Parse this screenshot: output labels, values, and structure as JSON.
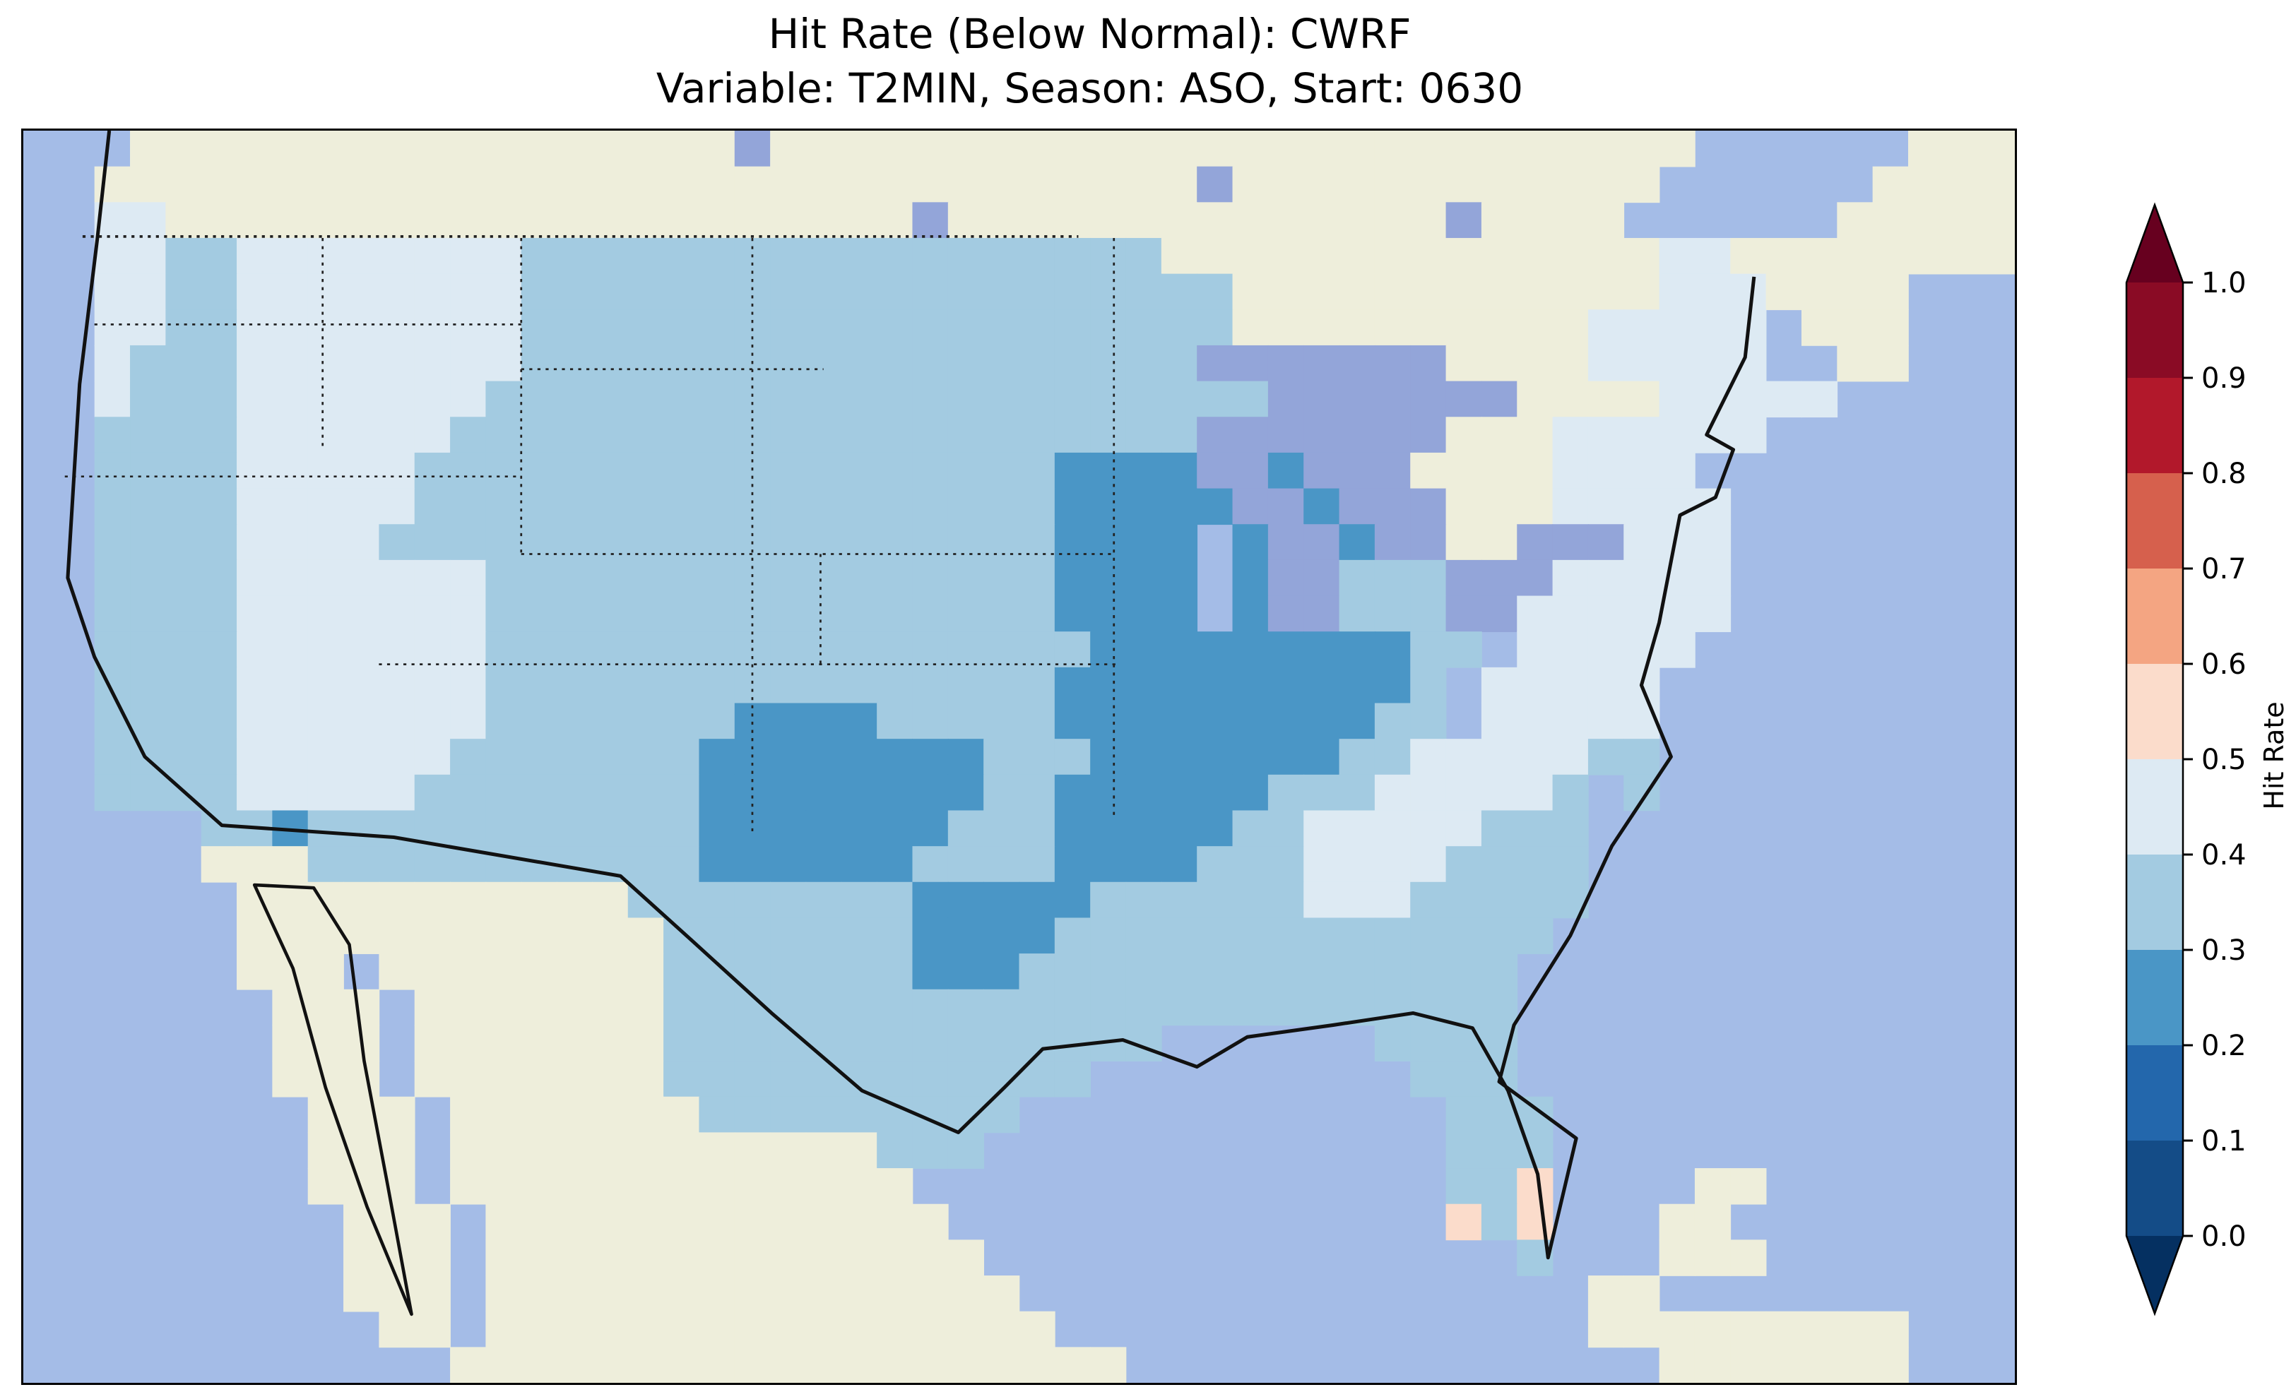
{
  "figure": {
    "title_line1": "Hit Rate (Below Normal): CWRF",
    "title_line2": "Variable: T2MIN, Season: ASO, Start: 0630"
  },
  "colorbar": {
    "label": "Hit Rate",
    "ticks": [
      "1.0",
      "0.9",
      "0.8",
      "0.7",
      "0.6",
      "0.5",
      "0.4",
      "0.3",
      "0.2",
      "0.1",
      "0.0"
    ],
    "over_color": "#67001f",
    "under_color": "#053061",
    "segments": [
      {
        "range": "0.9-1.0",
        "color": "#8a0b25"
      },
      {
        "range": "0.8-0.9",
        "color": "#b2182b"
      },
      {
        "range": "0.7-0.8",
        "color": "#d6604d"
      },
      {
        "range": "0.6-0.7",
        "color": "#f4a582"
      },
      {
        "range": "0.5-0.6",
        "color": "#fbdccb"
      },
      {
        "range": "0.4-0.5",
        "color": "#ddeaf3"
      },
      {
        "range": "0.3-0.4",
        "color": "#a3cbe1"
      },
      {
        "range": "0.2-0.3",
        "color": "#4a96c6"
      },
      {
        "range": "0.1-0.2",
        "color": "#2367ac"
      },
      {
        "range": "0.0-0.1",
        "color": "#144c87"
      }
    ]
  },
  "map": {
    "ocean_color": "#a4bce7",
    "land_color": "#eeeedb",
    "lake_color": "#93a5d9",
    "coast_color": "#111111",
    "border_color": "#222222"
  },
  "chart_data": {
    "type": "heatmap",
    "title": "Hit Rate (Below Normal): CWRF",
    "subtitle": "Variable: T2MIN, Season: ASO, Start: 0630",
    "colorbar_label": "Hit Rate",
    "colorbar_ticks": [
      0.0,
      0.1,
      0.2,
      0.3,
      0.4,
      0.5,
      0.6,
      0.7,
      0.8,
      0.9,
      1.0
    ],
    "colorbar_extend": "both",
    "region": "Continental United States (CONUS) with surrounding Canada, Mexico, Gulf of Mexico and Atlantic",
    "grid_cols": 56,
    "grid_rows": 35,
    "cell_legend": {
      ".": "ocean (no data)",
      "L": "non-US land (no data)",
      "W": "lake water",
      "2": "hit rate 0.2-0.3",
      "3": "hit rate 0.3-0.4",
      "4": "hit rate 0.4-0.5",
      "5": "hit rate 0.5-0.6"
    },
    "palette": {
      "L": "#eeeedb",
      "W": "#93a5d9",
      "2": "#4a96c6",
      "3": "#a3cbe1",
      "4": "#ddeaf3",
      "5": "#fbdccb"
    },
    "pattern_notes": "Most of CONUS 0.3-0.4; 0.2-0.3 cluster over MN/WI/IA/IL/MO and CO-KS and OK; pale 0.4-0.5 patches over coastal WA, N Rockies, Great Basin, New England/mid-Atlantic, VA-NC-TN; isolated 0.5-0.6 pink cells near South Florida",
    "grid": [
      "...LLLLLLLLLLLLLLLLLWLLLLLLLLLLLLLLLLLLLLLLLLLL......LLL",
      "..LLLLLLLLLLLLLLLLLLLLLLLLLLLLLLLWLLLLLLLLLLLL......LLLL",
      "..44LLLLLLLLLLLLLLLLLLLLLWLLLLLLLLLLLLLLWLLLL......LLLLL",
      "..443344444444333333333333333333LLLLLLLLLLLLLL44LLLLLLLL",
      "..44334444444433333333333333333333LLLLLLLLLLLL444LLLL...",
      "..44334444444433333333333333333333LLLLLLLLLL44444.LLL...",
      "..4333444444443333333333333333333WWWWWWWLLLL44444..LL...",
      "..433344444443333333333333333333333WWWWWWWLLLL44444.....",
      "..3333444444333333333333333333333WWWWWWWLLL444444.......",
      "..3333444443333333333333333332222WW2WWWLLLL4444........",
      "..33334444433333333333333333322222WW2WWWLLL44444........",
      "..3333444433333333333333333332222 2WW2WWLLWWW444.........",
      "..3333444444433333333333333332222 2WW333WWW44444.........",
      "..3333444444433333333333333332222 2WW333WW444444.........",
      "..333344444443333333333333333322222222233 44444..........",
      "..33334444444333333333333333322222222223 44444...........",
      "..33334444444333333322223333322222222233 44444...........",
      "..33334444443333333222222223332222222334444433..........",
      "..333344444333333332222222233222222333444443 3...........",
      ".....332333333333332222222333222223344444333............",
      ".....LLL333333333332222223333222233344443333............",
      "......LLLLLLLLLLL333333332222233333344433333............",
      "......LLLLLLLLLLLL3333333222233333333333333.............",
      "......LLL.LLLLLLLL333333322233333333333333..............",
      ".......LLL.LLLLLLL333333333333333333333333..............",
      ".......LLL.LLLLLLL33333333333333......3333..............",
      ".......LLL.LLLLLLL333333333333.........333..............",
      "........LLL.LLLLLLL333333333............333.............",
      "........LLL.LLLLLLLLLLLL333.............333.............",
      "........LLL.LLLLLLLLLLLLL...............335....LL.......",
      ".........LLL.LLLLLLLLLLLLL..............535...LL........",
      ".........LLL.LLLLLLLLLLLLLL...............3...LLL.......",
      ".........LLL.LLLLLLLLLLLLLLL................LL..........",
      "..........LL.LLLLLLLLLLLLLLLL...............LLLLLLLLL...",
      "............LLLLLLLLLLLLLLLLLLL...............LLLLLLL..."
    ]
  }
}
